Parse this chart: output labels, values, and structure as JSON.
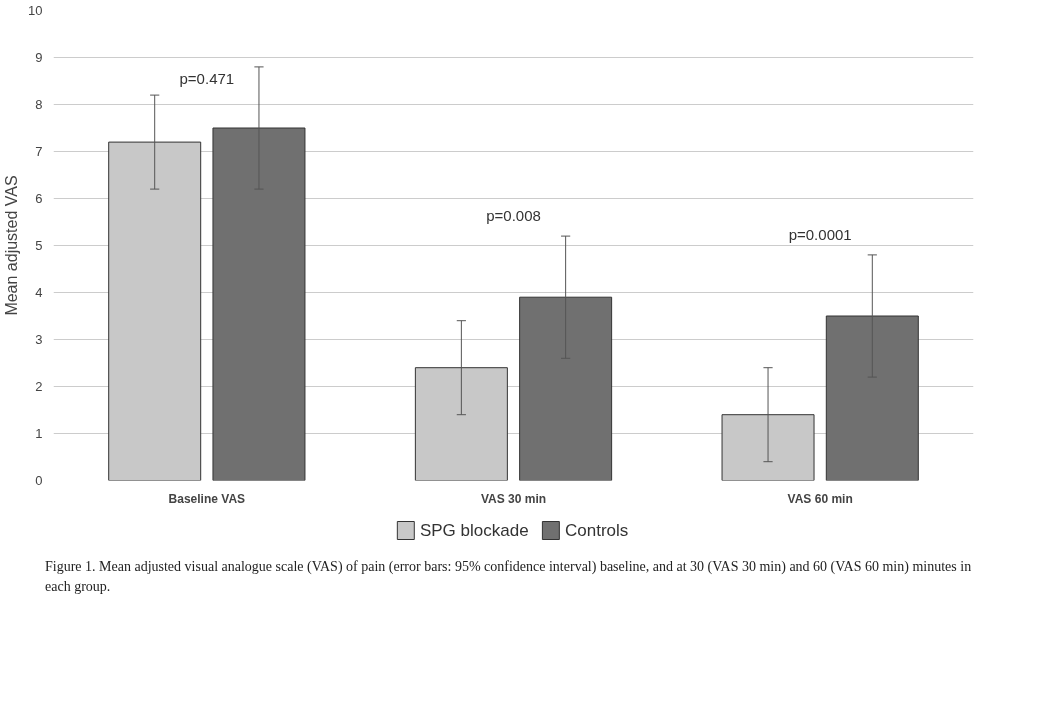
{
  "chart_data": {
    "type": "bar",
    "ylabel": "Mean adjusted VAS",
    "categories": [
      "Baseline VAS",
      "VAS 30 min",
      "VAS 60 min"
    ],
    "series": [
      {
        "name": "SPG blockade",
        "color": "#c8c8c8",
        "values": [
          7.2,
          2.4,
          1.4
        ],
        "errors": [
          1.0,
          1.0,
          1.0
        ]
      },
      {
        "name": "Controls",
        "color": "#707070",
        "values": [
          7.5,
          3.9,
          3.5
        ],
        "errors": [
          1.3,
          1.3,
          1.3
        ]
      }
    ],
    "ylim": [
      0,
      10
    ],
    "yticks": [
      0,
      1,
      2,
      3,
      4,
      5,
      6,
      7,
      8,
      9,
      10
    ],
    "grid": "y",
    "legend": "bottom",
    "annotations": [
      "p=0.471",
      "p=0.008",
      "p=0.0001",
      "Figure 1. Mean adjusted visual analogue scale (VAS) of pain (error bars: 95% confidence interval) baseline, and at 30 (VAS 30 min) and 60 (VAS 60 min) minutes in each group."
    ]
  }
}
